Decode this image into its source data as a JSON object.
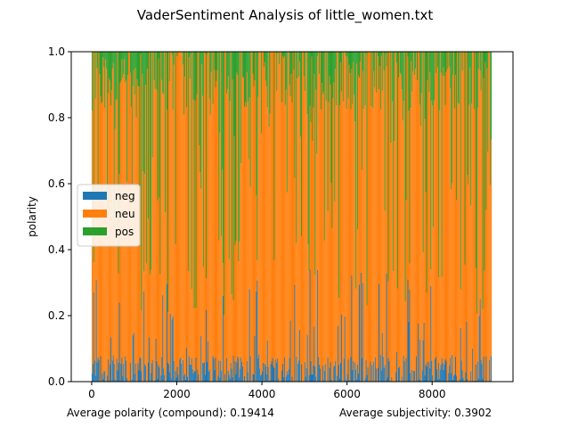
{
  "chart_data": {
    "type": "bar",
    "title": "VaderSentiment Analysis of little_women.txt",
    "xlabel": "",
    "ylabel": "polarity",
    "xlim": [
      -480,
      9900
    ],
    "ylim": [
      0,
      1
    ],
    "xticks": [
      0,
      2000,
      4000,
      6000,
      8000
    ],
    "yticks": [
      0.0,
      0.2,
      0.4,
      0.6,
      0.8,
      1.0
    ],
    "xtick_labels": [
      "0",
      "2000",
      "4000",
      "6000",
      "8000"
    ],
    "ytick_labels": [
      "0.0",
      "0.2",
      "0.4",
      "0.6",
      "0.8",
      "1.0"
    ],
    "n_sentences": 9400,
    "stacked": true,
    "series_order": [
      "neg",
      "neu",
      "pos"
    ],
    "series": [
      {
        "name": "neg",
        "color": "#1f77b4",
        "typical_value": 0.04,
        "max_value": 0.35
      },
      {
        "name": "neu",
        "color": "#ff7f0e",
        "typical_value": 0.85,
        "min_value": 0.2
      },
      {
        "name": "pos",
        "color": "#2ca02c",
        "typical_value": 0.11,
        "max_value": 0.8
      }
    ],
    "legend": {
      "position": "center-left",
      "entries": [
        "neg",
        "neu",
        "pos"
      ]
    },
    "grid": false,
    "annotations": {
      "polarity": "Average polarity (compound): 0.19414",
      "subjectivity": "Average subjectivity: 0.3902"
    }
  }
}
